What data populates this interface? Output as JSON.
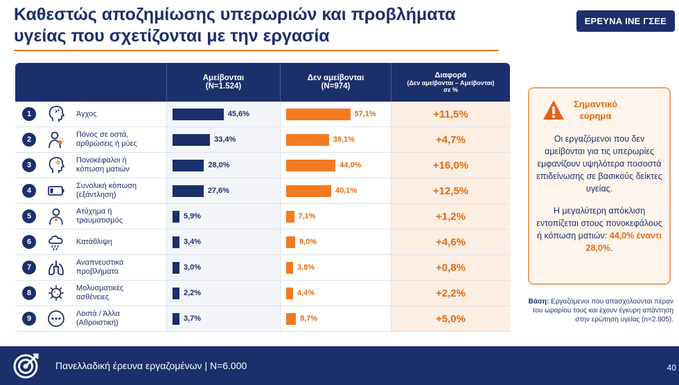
{
  "header": {
    "title_line1": "Καθεστώς αποζημίωσης υπερωριών και προβλήματα",
    "title_line2": "υγείας που σχετίζονται με την εργασία",
    "badge": "ΕΡΕΥΝΑ ΙΝΕ ΓΣΕΕ"
  },
  "table": {
    "col1_line1": "Αμείβονται",
    "col1_line2": "(N=1.524)",
    "col2_line1": "Δεν αμείβονται",
    "col2_line2": "(N=974)",
    "col3_line1": "Διαφορά",
    "col3_line2": "(Δεν αμείβονται – Αμείβονται)",
    "col3_line3": "σε %"
  },
  "chart_data": {
    "type": "bar",
    "categories": [
      {
        "n": "1",
        "line1": "Άγχος",
        "line2": "",
        "icon": "head-stress-icon"
      },
      {
        "n": "2",
        "line1": "Πόνος σε οστά,",
        "line2": "αρθρώσεις ή μύες",
        "icon": "body-pain-icon"
      },
      {
        "n": "3",
        "line1": "Πονοκέφαλοι ή",
        "line2": "κόπωση ματιών",
        "icon": "headache-icon"
      },
      {
        "n": "4",
        "line1": "Συνολική κόπωση",
        "line2": "(εξάντληση)",
        "icon": "low-battery-icon"
      },
      {
        "n": "5",
        "line1": "Ατύχημα ή",
        "line2": "τραυματισμός",
        "icon": "injury-icon"
      },
      {
        "n": "6",
        "line1": "Κατάθλιψη",
        "line2": "",
        "icon": "rain-cloud-icon"
      },
      {
        "n": "7",
        "line1": "Αναπνευστικά",
        "line2": "προβλήματα",
        "icon": "lungs-icon"
      },
      {
        "n": "8",
        "line1": "Μολυσματικές",
        "line2": "ασθένειες",
        "icon": "virus-icon"
      },
      {
        "n": "9",
        "line1": "Λοιπά / Άλλα",
        "line2": "(Αθροιστική)",
        "icon": "more-dots-icon"
      }
    ],
    "series": [
      {
        "name": "Αμείβονται",
        "values": [
          45.6,
          33.4,
          28.0,
          27.6,
          5.9,
          3.4,
          3.0,
          2.2,
          3.7
        ],
        "labels": [
          "45,6%",
          "33,4%",
          "28,0%",
          "27,6%",
          "5,9%",
          "3,4%",
          "3,0%",
          "2,2%",
          "3,7%"
        ],
        "color": "#1b2f6b"
      },
      {
        "name": "Δεν αμείβονται",
        "values": [
          57.1,
          38.1,
          44.0,
          40.1,
          7.1,
          8.0,
          3.8,
          4.4,
          8.7
        ],
        "labels": [
          "57,1%",
          "38,1%",
          "44,0%",
          "40,1%",
          "7,1%",
          "8,0%",
          "3,8%",
          "4,4%",
          "8,7%"
        ],
        "color": "#f47a20"
      }
    ],
    "differences": [
      "+11,5%",
      "+4,7%",
      "+16,0%",
      "+12,5%",
      "+1,2%",
      "+4,6%",
      "+0,8%",
      "+2,2%",
      "+5,0%"
    ]
  },
  "panel": {
    "title_line1": "Σημαντικό",
    "title_line2": "εύρημα",
    "p1": "Οι εργαζόμενοι που δεν αμείβονται για τις υπερωρίες εμφανίζουν υψηλότερα ποσοστά επιδείνωσης σε βασικούς δείκτες υγείας.",
    "p2_start": "Η μεγαλύτερη απόκλιση εντοπίζεται στους πονοκεφάλους ή κόπωση ματιών: ",
    "p2_hl": "44,0% έναντι 28,0%",
    "p2_end": "."
  },
  "basis": {
    "label": "Βάση:",
    "text": "Εργαζόμενοι που απασχολούνται πέραν του ωραρίου τους και έχουν έγκυρη απάντηση στην ερώτηση υγείας (n=2.805)."
  },
  "footer": {
    "text": "Πανελλαδική έρευνα εργαζομένων  |  N=6.000",
    "page": "40"
  }
}
